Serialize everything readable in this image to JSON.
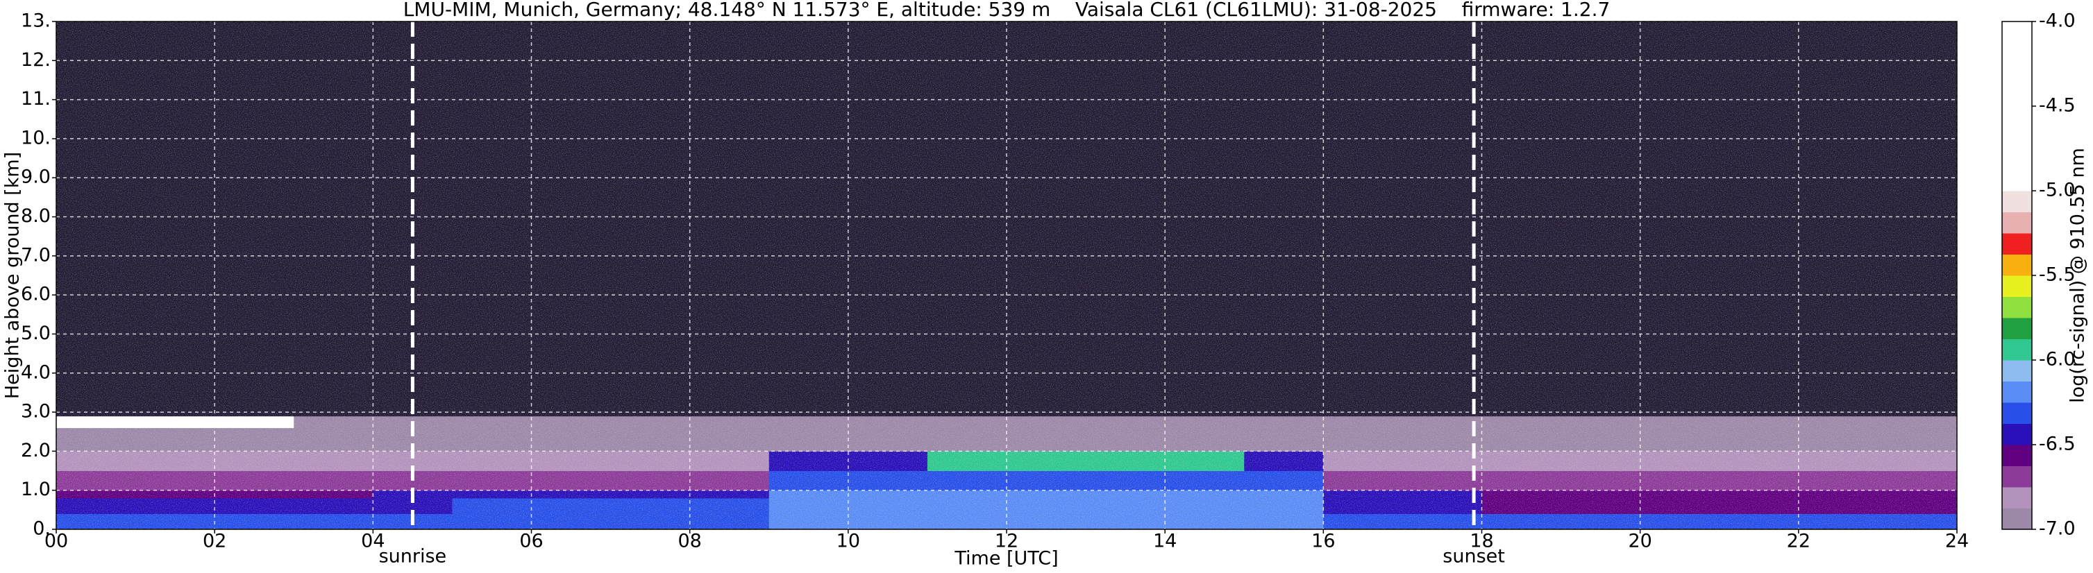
{
  "chart_data": {
    "type": "heatmap",
    "title": "LMU-MIM, Munich, Germany; 48.148° N 11.573° E, altitude: 539 m    Vaisala CL61 (CL61LMU): 31-08-2025    firmware: 1.2.7",
    "x_label": "Time [UTC]",
    "y_label": "Height above ground [km]",
    "colorbar_label": "log(rc-signal) @ 910.55 nm",
    "x_edges": [
      0,
      1,
      2,
      3,
      4,
      5,
      6,
      7,
      8,
      9,
      10,
      11,
      12,
      13,
      14,
      15,
      16,
      17,
      18,
      19,
      20,
      21,
      22,
      23,
      24
    ],
    "y_edges": [
      0,
      0.4,
      0.8,
      1.0,
      1.5,
      2.0,
      2.6,
      2.9,
      4,
      13
    ],
    "values": [
      [
        -6.3,
        -6.3,
        -6.3,
        -6.3,
        -6.3,
        -6.3,
        -6.3,
        -6.3,
        -6.3,
        -6.15,
        -6.15,
        -6.15,
        -6.15,
        -6.15,
        -6.15,
        -6.15,
        -6.3,
        -6.3,
        -6.3,
        -6.3,
        -6.3,
        -6.3,
        -6.3,
        -6.3
      ],
      [
        -6.45,
        -6.45,
        -6.45,
        -6.45,
        -6.45,
        -6.35,
        -6.35,
        -6.35,
        -6.35,
        -6.2,
        -6.2,
        -6.2,
        -6.2,
        -6.2,
        -6.2,
        -6.2,
        -6.4,
        -6.4,
        -6.55,
        -6.55,
        -6.55,
        -6.55,
        -6.55,
        -6.55
      ],
      [
        -6.6,
        -6.6,
        -6.6,
        -6.6,
        -6.45,
        -6.45,
        -6.45,
        -6.45,
        -6.45,
        -6.25,
        -6.25,
        -6.25,
        -6.25,
        -6.25,
        -6.25,
        -6.25,
        -6.5,
        -6.5,
        -6.6,
        -6.6,
        -6.6,
        -6.6,
        -6.6,
        -6.6
      ],
      [
        -6.7,
        -6.7,
        -6.7,
        -6.7,
        -6.7,
        -6.7,
        -6.7,
        -6.7,
        -6.7,
        -6.3,
        -6.3,
        -6.3,
        -6.3,
        -6.3,
        -6.3,
        -6.3,
        -6.7,
        -6.7,
        -6.7,
        -6.7,
        -6.7,
        -6.7,
        -6.7,
        -6.7
      ],
      [
        -6.8,
        -6.8,
        -6.8,
        -6.8,
        -6.8,
        -6.8,
        -6.8,
        -6.8,
        -6.8,
        -6.4,
        -6.4,
        -6.0,
        -6.0,
        -6.0,
        -6.0,
        -6.5,
        -6.85,
        -6.85,
        -6.85,
        -6.85,
        -6.85,
        -6.85,
        -6.85,
        -6.85
      ],
      [
        -6.95,
        -6.95,
        -6.95,
        -6.95,
        -6.95,
        -6.95,
        -6.95,
        -6.95,
        -6.95,
        -6.95,
        -6.95,
        -6.9,
        -6.9,
        -6.9,
        -6.9,
        -6.95,
        -6.95,
        -6.95,
        -6.95,
        -6.95,
        -6.95,
        -6.95,
        -6.95,
        -6.95
      ],
      [
        -4.5,
        -4.5,
        -4.5,
        -6.98,
        -6.98,
        -6.98,
        -6.98,
        -6.98,
        -6.98,
        -6.98,
        -6.98,
        -6.98,
        -6.98,
        -6.98,
        -6.98,
        -6.98,
        -6.98,
        -6.98,
        -6.98,
        -6.98,
        -6.98,
        -6.98,
        -6.98,
        -6.98
      ],
      [
        -7.2,
        -7.2,
        -7.2,
        -7.2,
        -7.2,
        -7.2,
        -7.2,
        -7.2,
        -7.2,
        -7.2,
        -7.2,
        -7.2,
        -7.2,
        -7.2,
        -7.2,
        -7.2,
        -7.2,
        -7.2,
        -7.2,
        -7.2,
        -7.2,
        -7.2,
        -7.2,
        -7.2
      ],
      [
        -7.4,
        -7.4,
        -7.4,
        -7.4,
        -7.4,
        -7.4,
        -7.4,
        -7.4,
        -7.4,
        -7.4,
        -7.4,
        -7.4,
        -7.4,
        -7.4,
        -7.4,
        -7.4,
        -7.4,
        -7.4,
        -7.4,
        -7.4,
        -7.4,
        -7.4,
        -7.4,
        -7.4
      ]
    ],
    "xlim": [
      0,
      24
    ],
    "xticks": [
      {
        "value": 0,
        "label": "00"
      },
      {
        "value": 2,
        "label": "02"
      },
      {
        "value": 4,
        "label": "04"
      },
      {
        "value": 6,
        "label": "06"
      },
      {
        "value": 8,
        "label": "08"
      },
      {
        "value": 10,
        "label": "10"
      },
      {
        "value": 12,
        "label": "12"
      },
      {
        "value": 14,
        "label": "14"
      },
      {
        "value": 16,
        "label": "16"
      },
      {
        "value": 18,
        "label": "18"
      },
      {
        "value": 20,
        "label": "20"
      },
      {
        "value": 22,
        "label": "22"
      },
      {
        "value": 24,
        "label": "24"
      }
    ],
    "ylim": [
      0,
      13
    ],
    "yticks": [
      {
        "value": 0,
        "label": "0."
      },
      {
        "value": 1,
        "label": "1.0"
      },
      {
        "value": 2,
        "label": "2.0"
      },
      {
        "value": 3,
        "label": "3.0"
      },
      {
        "value": 4,
        "label": "4.0"
      },
      {
        "value": 5,
        "label": "5.0"
      },
      {
        "value": 6,
        "label": "6.0"
      },
      {
        "value": 7,
        "label": "7.0"
      },
      {
        "value": 8,
        "label": "8.0"
      },
      {
        "value": 9,
        "label": "9.0"
      },
      {
        "value": 10,
        "label": "10."
      },
      {
        "value": 11,
        "label": "11."
      },
      {
        "value": 12,
        "label": "12."
      },
      {
        "value": 13,
        "label": "13."
      }
    ],
    "clim": [
      -7,
      -4
    ],
    "cticks": [
      {
        "value": -7,
        "label": "-7.0"
      },
      -6.5,
      {
        "value": -6,
        "label": "-6.0"
      },
      -5.5,
      {
        "value": -5,
        "label": "-5.0"
      },
      -4.5,
      {
        "value": -4,
        "label": "-4.0"
      }
    ],
    "colors": [
      "#9c88a8",
      "#b393bc",
      "#8c3c98",
      "#600080",
      "#2a10b8",
      "#2850e8",
      "#5a8cf5",
      "#8cbcf0",
      "#30c890",
      "#20a040",
      "#90e040",
      "#e8f020",
      "#f8b010",
      "#f02020",
      "#e8b0b0",
      "#f0e0e0",
      "#ffffff",
      "#ffffff",
      "#ffffff",
      "#ffffff",
      "#ffffff",
      "#ffffff",
      "#ffffff",
      "#ffffff"
    ],
    "under_color": "#241c34",
    "grid": true,
    "annotations": [
      {
        "text": "sunrise",
        "x": 4.5
      },
      {
        "text": "sunset",
        "x": 17.9
      }
    ]
  }
}
